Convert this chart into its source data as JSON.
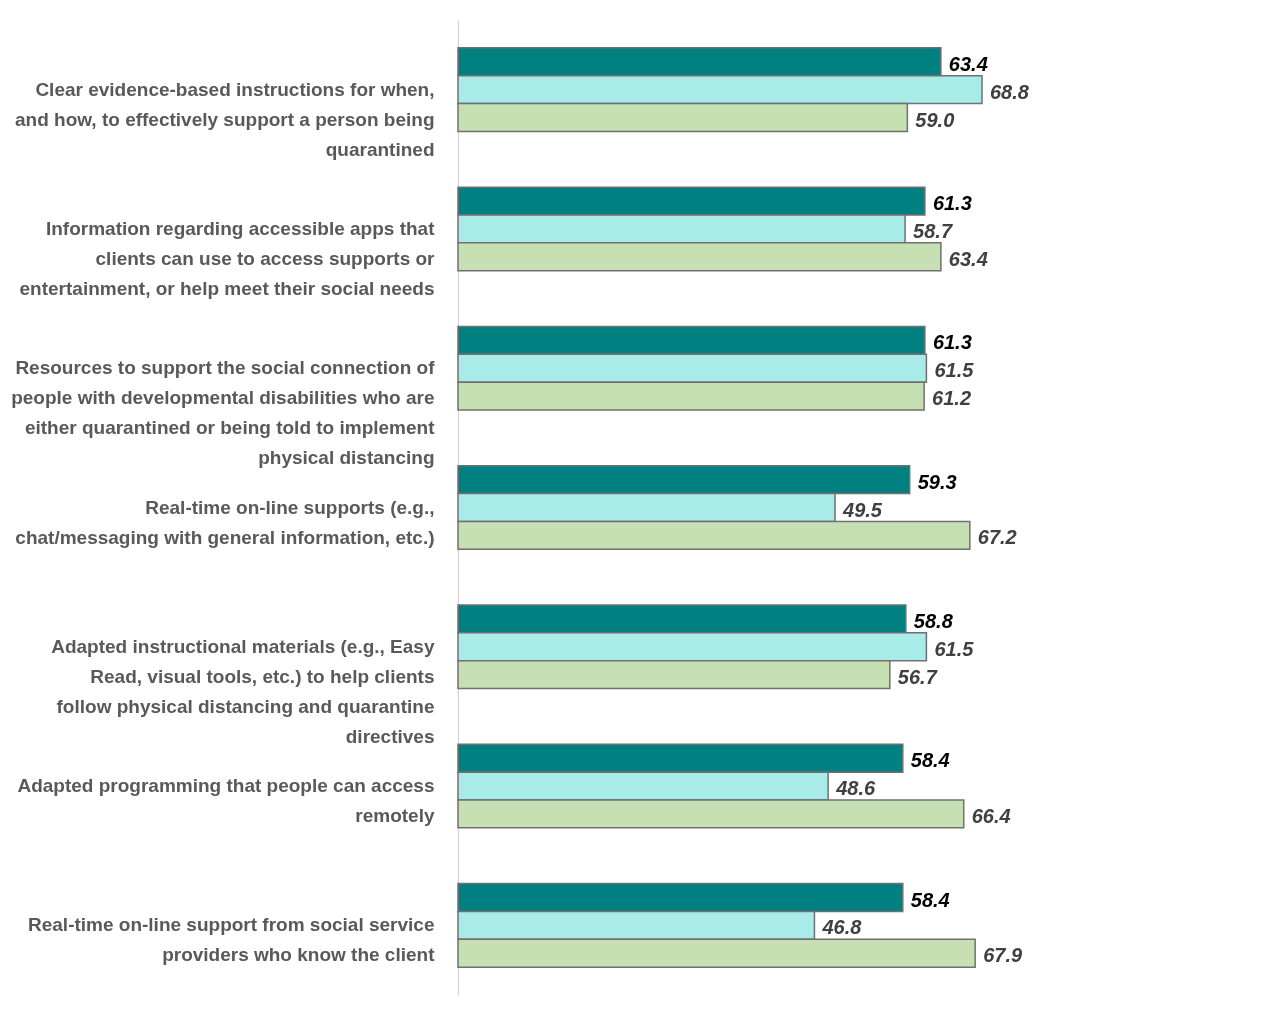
{
  "chart_data": {
    "type": "bar",
    "orientation": "horizontal",
    "categories": [
      "Clear evidence-based instructions for when, and how, to effectively support a person being quarantined",
      "Information regarding accessible apps that clients can use to access supports or entertainment, or help meet their social needs",
      "Resources to support the social connection of people with developmental disabilities who are either quarantined or being told to implement physical distancing",
      "Real-time on-line supports (e.g., chat/messaging with general information, etc.)",
      "Adapted instructional materials (e.g., Easy Read, visual tools, etc.) to help clients follow physical distancing and quarantine directives",
      "Adapted programming that people can access remotely",
      "Real-time on-line support from social service providers who know the client"
    ],
    "series": [
      {
        "color": "#008080",
        "values": [
          63.4,
          61.3,
          61.3,
          59.3,
          58.8,
          58.4,
          58.4
        ],
        "value_labels": [
          "63.4",
          "61.3",
          "61.3",
          "59.3",
          "58.8",
          "58.4",
          "58.4"
        ]
      },
      {
        "color": "#a8ebe9",
        "values": [
          68.8,
          58.7,
          61.5,
          49.5,
          61.5,
          48.6,
          46.8
        ],
        "value_labels": [
          "68.8",
          "58.7",
          "61.5",
          "49.5",
          "61.5",
          "48.6",
          "46.8"
        ]
      },
      {
        "color": "#c6e0b4",
        "values": [
          59.0,
          63.4,
          61.2,
          67.2,
          56.7,
          66.4,
          67.9
        ],
        "value_labels": [
          "59.0",
          "63.4",
          "61.2",
          "67.2",
          "56.7",
          "66.4",
          "67.9"
        ]
      }
    ],
    "tick_labels": "y",
    "grid": false,
    "legend": false
  }
}
